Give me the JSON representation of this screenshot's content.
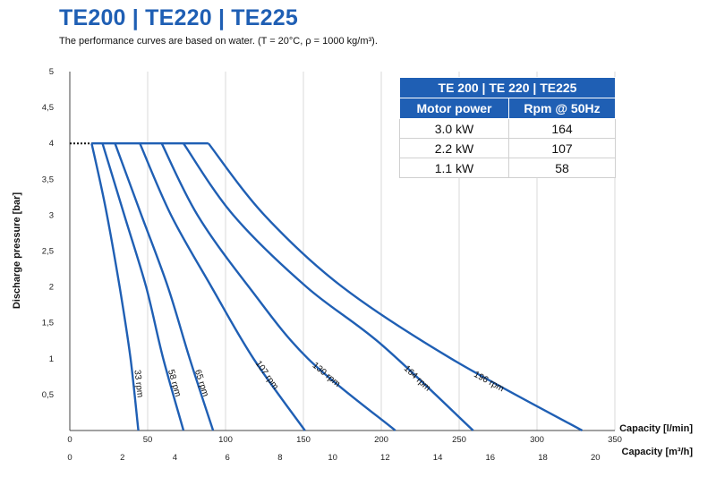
{
  "header": {
    "title": "TE200 | TE220 | TE225",
    "subtitle": "The performance curves are based on water. (T = 20°C, ρ = 1000 kg/m³)."
  },
  "legend_table": {
    "title": "TE 200 | TE 220 | TE225",
    "col_headers": [
      "Motor power",
      "Rpm @ 50Hz"
    ],
    "rows": [
      [
        "3.0 kW",
        "164"
      ],
      [
        "2.2 kW",
        "107"
      ],
      [
        "1.1 kW",
        "58"
      ]
    ]
  },
  "colors": {
    "accent": "#1f5fb4",
    "curve": "#1f5fb4",
    "grid": "#d9d9d9"
  },
  "chart_data": {
    "type": "line",
    "ylabel": "Discharge pressure [bar]",
    "xlabel": "Capacity [l/min]",
    "x2label": "Capacity [m³/h]",
    "xlim": [
      0,
      350
    ],
    "ylim": [
      0,
      5
    ],
    "xticks": [
      "0",
      "50",
      "100",
      "150",
      "200",
      "250",
      "300",
      "350"
    ],
    "x2ticks": [
      "0",
      "2",
      "4",
      "6",
      "8",
      "10",
      "12",
      "14",
      "16",
      "18",
      "20"
    ],
    "yticks": [
      "5",
      "4,5",
      "4",
      "3,5",
      "3",
      "2,5",
      "2",
      "1,5",
      "1",
      "0,5"
    ],
    "grid": "vertical",
    "series": [
      {
        "name": "33 rpm",
        "points": [
          [
            14,
            4
          ],
          [
            23,
            3.1
          ],
          [
            32,
            2.0
          ],
          [
            39,
            1.0
          ],
          [
            44,
            0
          ]
        ]
      },
      {
        "name": "58 rpm",
        "points": [
          [
            21,
            4
          ],
          [
            35,
            3.0
          ],
          [
            49,
            2.0
          ],
          [
            60,
            1.0
          ],
          [
            73,
            0
          ]
        ]
      },
      {
        "name": "65 rpm",
        "points": [
          [
            29,
            4
          ],
          [
            46,
            3.0
          ],
          [
            63,
            2.0
          ],
          [
            77,
            1.0
          ],
          [
            92,
            0
          ]
        ]
      },
      {
        "name": "107 rpm",
        "points": [
          [
            45,
            4
          ],
          [
            65,
            3.0
          ],
          [
            91,
            2.0
          ],
          [
            118,
            1.0
          ],
          [
            151,
            0
          ]
        ]
      },
      {
        "name": "130 rpm",
        "points": [
          [
            59,
            4
          ],
          [
            82,
            3.0
          ],
          [
            115,
            2.0
          ],
          [
            153,
            1.0
          ],
          [
            209,
            0
          ]
        ]
      },
      {
        "name": "164 rpm",
        "points": [
          [
            73,
            4
          ],
          [
            105,
            3.0
          ],
          [
            152,
            2.0
          ],
          [
            200,
            1.2
          ],
          [
            259,
            0
          ]
        ]
      },
      {
        "name": "196 rpm",
        "points": [
          [
            89,
            4
          ],
          [
            125,
            3.0
          ],
          [
            175,
            2.0
          ],
          [
            245,
            1.0
          ],
          [
            329,
            0
          ]
        ]
      }
    ],
    "dotted_segment": [
      [
        0,
        4
      ],
      [
        14,
        4
      ]
    ]
  }
}
